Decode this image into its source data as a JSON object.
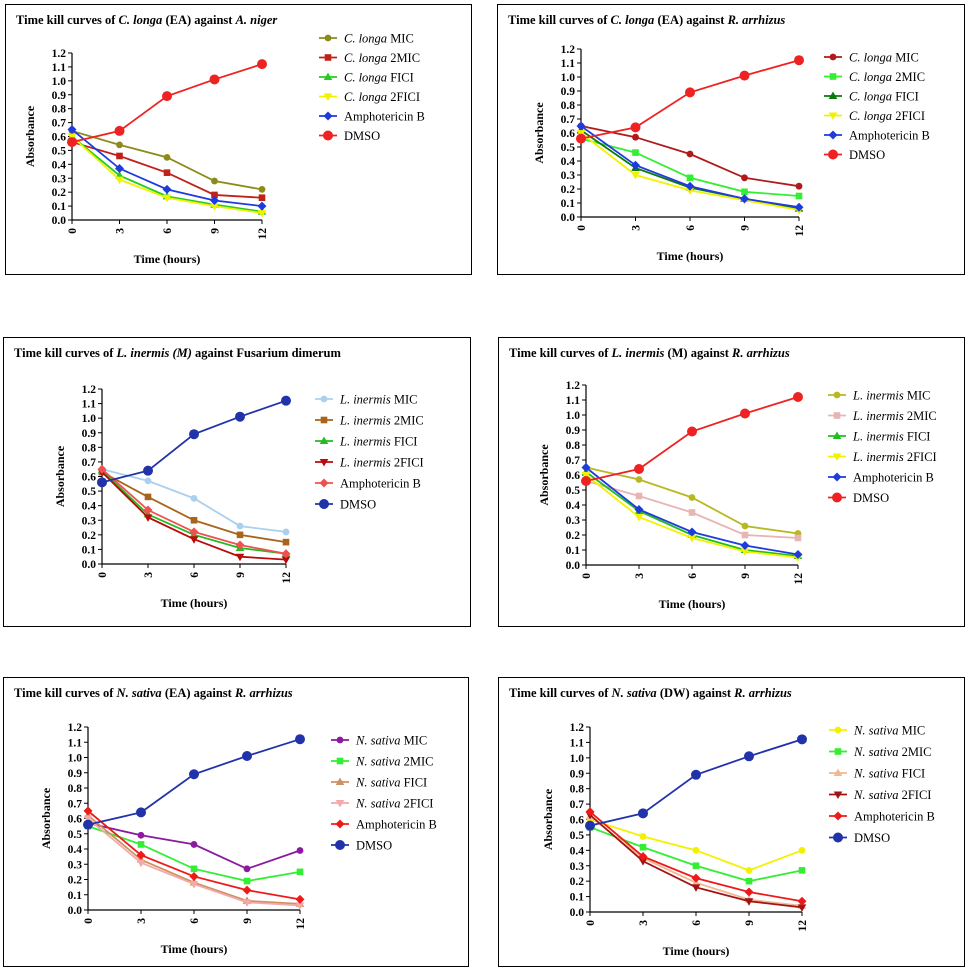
{
  "chart_data": [
    {
      "type": "line",
      "title": {
        "pre": "Time kill curves of ",
        "org": "C. longa",
        "mid": " (EA) against ",
        "target": "A. niger",
        "target_italic": true
      },
      "xlabel": "Time (hours)",
      "ylabel": "Absorbance",
      "x": [
        0,
        3,
        6,
        9,
        12
      ],
      "ylim": [
        0,
        1.2
      ],
      "yticks": [
        "0.0",
        "0.1",
        "0.2",
        "0.3",
        "0.4",
        "0.5",
        "0.6",
        "0.7",
        "0.8",
        "0.9",
        "1.0",
        "1.1",
        "1.2"
      ],
      "series": [
        {
          "name": "C. longa MIC",
          "italic": "C. longa",
          "suffix": " MIC",
          "color": "#8b8b1a",
          "marker": "circle",
          "values": [
            0.64,
            0.54,
            0.45,
            0.28,
            0.22
          ]
        },
        {
          "name": "C. longa 2MIC",
          "italic": "C. longa",
          "suffix": " 2MIC",
          "color": "#c0221a",
          "marker": "square",
          "values": [
            0.56,
            0.46,
            0.34,
            0.18,
            0.16
          ]
        },
        {
          "name": "C. longa FICI",
          "italic": "C. longa",
          "suffix": " FICI",
          "color": "#22cc22",
          "marker": "triangle",
          "values": [
            0.6,
            0.32,
            0.17,
            0.11,
            0.06
          ]
        },
        {
          "name": "C. longa 2FICI",
          "italic": "C. longa",
          "suffix": " 2FICI",
          "color": "#f2f200",
          "marker": "tridown",
          "values": [
            0.6,
            0.29,
            0.16,
            0.1,
            0.05
          ]
        },
        {
          "name": "Amphotericin B",
          "italic": "",
          "suffix": "Amphotericin B",
          "color": "#1e3cdc",
          "marker": "diamond",
          "values": [
            0.65,
            0.37,
            0.22,
            0.14,
            0.1
          ]
        },
        {
          "name": "DMSO",
          "italic": "",
          "suffix": "DMSO",
          "color": "#ee2222",
          "marker": "bigcircle",
          "values": [
            0.56,
            0.64,
            0.89,
            1.01,
            1.12
          ]
        }
      ]
    },
    {
      "type": "line",
      "title": {
        "pre": "Time kill curves of ",
        "org": "C. longa",
        "mid": " (EA) against ",
        "target": "R. arrhizus",
        "target_italic": true
      },
      "xlabel": "Time (hours)",
      "ylabel": "Absorbance",
      "x": [
        0,
        3,
        6,
        9,
        12
      ],
      "ylim": [
        0,
        1.2
      ],
      "yticks": [
        "0.0",
        "0.1",
        "0.2",
        "0.3",
        "0.4",
        "0.5",
        "0.6",
        "0.7",
        "0.8",
        "0.9",
        "1.0",
        "1.1",
        "1.2"
      ],
      "series": [
        {
          "name": "C. longa MIC",
          "italic": "C. longa",
          "suffix": " MIC",
          "color": "#b01a1a",
          "marker": "circle",
          "values": [
            0.65,
            0.57,
            0.45,
            0.28,
            0.22
          ]
        },
        {
          "name": "C. longa 2MIC",
          "italic": "C. longa",
          "suffix": " 2MIC",
          "color": "#33ee33",
          "marker": "square",
          "values": [
            0.56,
            0.46,
            0.28,
            0.18,
            0.15
          ]
        },
        {
          "name": "C. longa FICI",
          "italic": "C. longa",
          "suffix": " FICI",
          "color": "#0a7a0a",
          "marker": "triangle",
          "values": [
            0.62,
            0.35,
            0.21,
            0.13,
            0.06
          ]
        },
        {
          "name": "C. longa 2FICI",
          "italic": "C. longa",
          "suffix": " 2FICI",
          "color": "#f2f200",
          "marker": "tridown",
          "values": [
            0.6,
            0.3,
            0.19,
            0.12,
            0.05
          ]
        },
        {
          "name": "Amphotericin B",
          "italic": "",
          "suffix": "Amphotericin B",
          "color": "#1e3cdc",
          "marker": "diamond",
          "values": [
            0.65,
            0.37,
            0.22,
            0.13,
            0.07
          ]
        },
        {
          "name": "DMSO",
          "italic": "",
          "suffix": "DMSO",
          "color": "#ee2222",
          "marker": "bigcircle",
          "values": [
            0.56,
            0.64,
            0.89,
            1.01,
            1.12
          ]
        }
      ]
    },
    {
      "type": "line",
      "title": {
        "pre": "Time kill curves of ",
        "org": "L. inermis (M)",
        "mid": " against ",
        "target": "Fusarium dimerum",
        "target_italic": false
      },
      "xlabel": "Time (hours)",
      "ylabel": "Absorbance",
      "x": [
        0,
        3,
        6,
        9,
        12
      ],
      "ylim": [
        0,
        1.2
      ],
      "yticks": [
        "0.0",
        "0.1",
        "0.2",
        "0.3",
        "0.4",
        "0.5",
        "0.6",
        "0.7",
        "0.8",
        "0.9",
        "1.0",
        "1.1",
        "1.2"
      ],
      "series": [
        {
          "name": "L. inermis MIC",
          "italic": "L. inermis",
          "suffix": " MIC",
          "color": "#aad0ee",
          "marker": "circle",
          "values": [
            0.65,
            0.57,
            0.45,
            0.26,
            0.22
          ]
        },
        {
          "name": "L. inermis 2MIC",
          "italic": "L. inermis",
          "suffix": " 2MIC",
          "color": "#a8641a",
          "marker": "square",
          "values": [
            0.63,
            0.46,
            0.3,
            0.2,
            0.15
          ]
        },
        {
          "name": "L. inermis FICI",
          "italic": "L. inermis",
          "suffix": " FICI",
          "color": "#22bb22",
          "marker": "triangle",
          "values": [
            0.64,
            0.34,
            0.2,
            0.11,
            0.07
          ]
        },
        {
          "name": "L. inermis 2FICI",
          "italic": "L. inermis",
          "suffix": " 2FICI",
          "color": "#bb0a0a",
          "marker": "tridown",
          "values": [
            0.63,
            0.32,
            0.17,
            0.05,
            0.03
          ]
        },
        {
          "name": "Amphotericin B",
          "italic": "",
          "suffix": "Amphotericin B",
          "color": "#f05050",
          "marker": "diamond",
          "values": [
            0.65,
            0.37,
            0.22,
            0.13,
            0.07
          ]
        },
        {
          "name": "DMSO",
          "italic": "",
          "suffix": "DMSO",
          "color": "#2233aa",
          "marker": "bigcircle",
          "values": [
            0.56,
            0.64,
            0.89,
            1.01,
            1.12
          ]
        }
      ]
    },
    {
      "type": "line",
      "title": {
        "pre": "Time kill curves of ",
        "org": "L. inermis",
        "mid": " (M) against ",
        "target": "R. arrhizus",
        "target_italic": true
      },
      "xlabel": "Time (hours)",
      "ylabel": "Absorbance",
      "x": [
        0,
        3,
        6,
        9,
        12
      ],
      "ylim": [
        0,
        1.2
      ],
      "yticks": [
        "0.0",
        "0.1",
        "0.2",
        "0.3",
        "0.4",
        "0.5",
        "0.6",
        "0.7",
        "0.8",
        "0.9",
        "1.0",
        "1.1",
        "1.2"
      ],
      "series": [
        {
          "name": "L. inermis MIC",
          "italic": "L. inermis",
          "suffix": " MIC",
          "color": "#b8b822",
          "marker": "circle",
          "values": [
            0.65,
            0.57,
            0.45,
            0.26,
            0.21
          ]
        },
        {
          "name": "L. inermis 2MIC",
          "italic": "L. inermis",
          "suffix": " 2MIC",
          "color": "#e8b4b4",
          "marker": "square",
          "values": [
            0.56,
            0.46,
            0.35,
            0.2,
            0.18
          ]
        },
        {
          "name": "L. inermis FICI",
          "italic": "L. inermis",
          "suffix": " FICI",
          "color": "#22bb22",
          "marker": "triangle",
          "values": [
            0.62,
            0.36,
            0.2,
            0.1,
            0.06
          ]
        },
        {
          "name": "L. inermis 2FICI",
          "italic": "L. inermis",
          "suffix": " 2FICI",
          "color": "#f2f200",
          "marker": "tridown",
          "values": [
            0.6,
            0.32,
            0.18,
            0.09,
            0.05
          ]
        },
        {
          "name": "Amphotericin B",
          "italic": "",
          "suffix": "Amphotericin B",
          "color": "#1e3cdc",
          "marker": "diamond",
          "values": [
            0.65,
            0.37,
            0.22,
            0.13,
            0.07
          ]
        },
        {
          "name": "DMSO",
          "italic": "",
          "suffix": "DMSO",
          "color": "#ee2222",
          "marker": "bigcircle",
          "values": [
            0.56,
            0.64,
            0.89,
            1.01,
            1.12
          ]
        }
      ]
    },
    {
      "type": "line",
      "title": {
        "pre": "Time kill curves of ",
        "org": "N. sativa",
        "mid": " (EA) against ",
        "target": "R. arrhizus",
        "target_italic": true
      },
      "xlabel": "Time (hours)",
      "ylabel": "Absorbance",
      "x": [
        0,
        3,
        6,
        9,
        12
      ],
      "ylim": [
        0,
        1.2
      ],
      "yticks": [
        "0.0",
        "0.1",
        "0.2",
        "0.3",
        "0.4",
        "0.5",
        "0.6",
        "0.7",
        "0.8",
        "0.9",
        "1.0",
        "1.1",
        "1.2"
      ],
      "series": [
        {
          "name": "N. sativa MIC",
          "italic": "N. sativa",
          "suffix": " MIC",
          "color": "#8a1aa0",
          "marker": "circle",
          "values": [
            0.57,
            0.49,
            0.43,
            0.27,
            0.39
          ]
        },
        {
          "name": "N. sativa 2MIC",
          "italic": "N. sativa",
          "suffix": " 2MIC",
          "color": "#33ee33",
          "marker": "square",
          "values": [
            0.55,
            0.43,
            0.27,
            0.19,
            0.25
          ]
        },
        {
          "name": "N. sativa FICI",
          "italic": "N. sativa",
          "suffix": " FICI",
          "color": "#d09060",
          "marker": "triangle",
          "values": [
            0.62,
            0.33,
            0.18,
            0.06,
            0.04
          ]
        },
        {
          "name": "N. sativa 2FICI",
          "italic": "N. sativa",
          "suffix": " 2FICI",
          "color": "#f4a8a8",
          "marker": "tridown",
          "values": [
            0.6,
            0.31,
            0.17,
            0.05,
            0.03
          ]
        },
        {
          "name": "Amphotericin B",
          "italic": "",
          "suffix": "Amphotericin B",
          "color": "#ee1a1a",
          "marker": "diamond",
          "values": [
            0.65,
            0.36,
            0.22,
            0.13,
            0.07
          ]
        },
        {
          "name": "DMSO",
          "italic": "",
          "suffix": "DMSO",
          "color": "#2233aa",
          "marker": "bigcircle",
          "values": [
            0.56,
            0.64,
            0.89,
            1.01,
            1.12
          ]
        }
      ]
    },
    {
      "type": "line",
      "title": {
        "pre": "Time kill curves of ",
        "org": "N. sativa",
        "mid": " (DW) against ",
        "target": "R. arrhizus",
        "target_italic": true
      },
      "xlabel": "Time (hours)",
      "ylabel": "Absorbance",
      "x": [
        0,
        3,
        6,
        9,
        12
      ],
      "ylim": [
        0,
        1.2
      ],
      "yticks": [
        "0.0",
        "0.1",
        "0.2",
        "0.3",
        "0.4",
        "0.5",
        "0.6",
        "0.7",
        "0.8",
        "0.9",
        "1.0",
        "1.1",
        "1.2"
      ],
      "series": [
        {
          "name": "N. sativa MIC",
          "italic": "N. sativa",
          "suffix": " MIC",
          "color": "#f2f200",
          "marker": "circle",
          "values": [
            0.6,
            0.49,
            0.4,
            0.27,
            0.4
          ]
        },
        {
          "name": "N. sativa 2MIC",
          "italic": "N. sativa",
          "suffix": " 2MIC",
          "color": "#33ee33",
          "marker": "square",
          "values": [
            0.55,
            0.42,
            0.3,
            0.2,
            0.27
          ]
        },
        {
          "name": "N. sativa FICI",
          "italic": "N. sativa",
          "suffix": " FICI",
          "color": "#f0b890",
          "marker": "triangle",
          "values": [
            0.62,
            0.35,
            0.19,
            0.08,
            0.04
          ]
        },
        {
          "name": "N. sativa 2FICI",
          "italic": "N. sativa",
          "suffix": " 2FICI",
          "color": "#a01414",
          "marker": "tridown",
          "values": [
            0.63,
            0.33,
            0.16,
            0.07,
            0.03
          ]
        },
        {
          "name": "Amphotericin B",
          "italic": "",
          "suffix": "Amphotericin B",
          "color": "#ee1a1a",
          "marker": "diamond",
          "values": [
            0.65,
            0.36,
            0.22,
            0.13,
            0.07
          ]
        },
        {
          "name": "DMSO",
          "italic": "",
          "suffix": "DMSO",
          "color": "#2233aa",
          "marker": "bigcircle",
          "values": [
            0.56,
            0.64,
            0.89,
            1.01,
            1.12
          ]
        }
      ]
    }
  ]
}
